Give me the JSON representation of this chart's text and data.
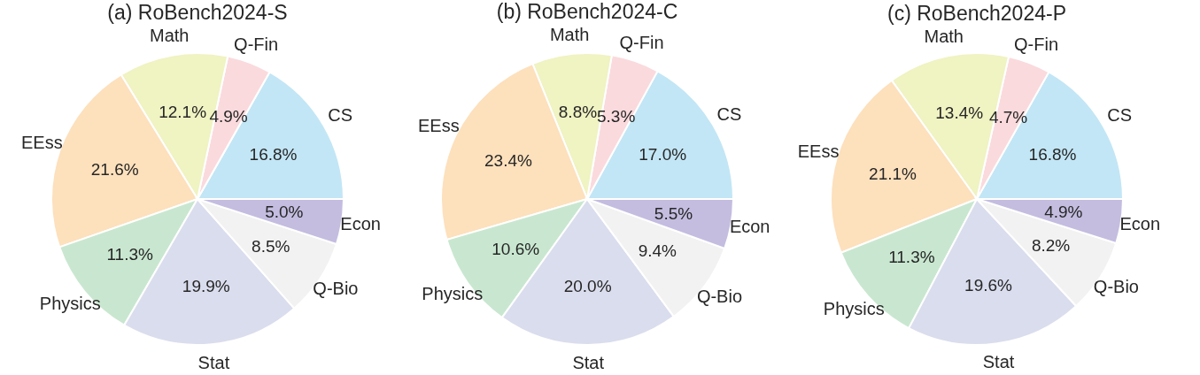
{
  "chart_data": [
    {
      "type": "pie",
      "title": "(a) RoBench2024-S",
      "categories": [
        "CS",
        "Q-Fin",
        "Math",
        "EEss",
        "Physics",
        "Stat",
        "Q-Bio",
        "Econ"
      ],
      "values": [
        16.8,
        4.9,
        12.1,
        21.6,
        11.3,
        19.9,
        8.5,
        5.0
      ],
      "value_labels": [
        "16.8%",
        "4.9%",
        "12.1%",
        "21.6%",
        "11.3%",
        "19.9%",
        "8.5%",
        "5.0%"
      ],
      "colors": [
        "#c2e6f5",
        "#fadadd",
        "#f0f3c2",
        "#fde0bc",
        "#c9e7d0",
        "#dadded",
        "#f2f2f2",
        "#c4bde0"
      ]
    },
    {
      "type": "pie",
      "title": "(b) RoBench2024-C",
      "categories": [
        "CS",
        "Q-Fin",
        "Math",
        "EEss",
        "Physics",
        "Stat",
        "Q-Bio",
        "Econ"
      ],
      "values": [
        17.0,
        5.3,
        8.8,
        23.4,
        10.6,
        20.0,
        9.4,
        5.5
      ],
      "value_labels": [
        "17.0%",
        "5.3%",
        "8.8%",
        "23.4%",
        "10.6%",
        "20.0%",
        "9.4%",
        "5.5%"
      ],
      "colors": [
        "#c2e6f5",
        "#fadadd",
        "#f0f3c2",
        "#fde0bc",
        "#c9e7d0",
        "#dadded",
        "#f2f2f2",
        "#c4bde0"
      ]
    },
    {
      "type": "pie",
      "title": "(c) RoBench2024-P",
      "categories": [
        "CS",
        "Q-Fin",
        "Math",
        "EEss",
        "Physics",
        "Stat",
        "Q-Bio",
        "Econ"
      ],
      "values": [
        16.8,
        4.7,
        13.4,
        21.1,
        11.3,
        19.6,
        8.2,
        4.9
      ],
      "value_labels": [
        "16.8%",
        "4.7%",
        "13.4%",
        "21.1%",
        "11.3%",
        "19.6%",
        "8.2%",
        "4.9%"
      ],
      "colors": [
        "#c2e6f5",
        "#fadadd",
        "#f0f3c2",
        "#fde0bc",
        "#c9e7d0",
        "#dadded",
        "#f2f2f2",
        "#c4bde0"
      ]
    }
  ]
}
